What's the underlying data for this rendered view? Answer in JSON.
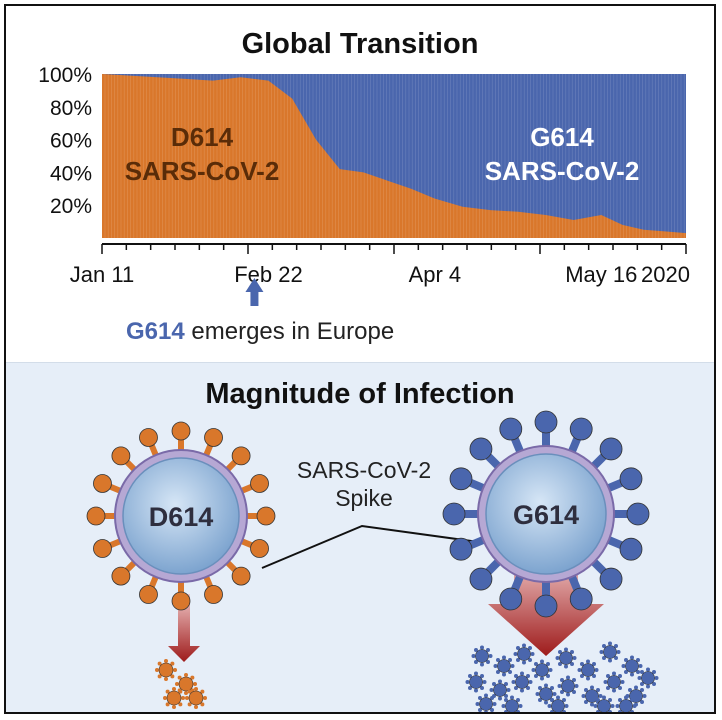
{
  "top_title": "Global Transition",
  "chart_data": {
    "type": "area",
    "stacked": true,
    "normalized": true,
    "x_ticks": [
      "Jan 11",
      "Feb 22",
      "Apr 4",
      "May 16",
      "2020"
    ],
    "y_ticks": [
      "100%",
      "80%",
      "60%",
      "40%",
      "20%"
    ],
    "ylim": [
      0,
      100
    ],
    "series": [
      {
        "name": "D614 SARS-CoV-2",
        "color": "#d9772b",
        "x": [
          "Jan 11",
          "Jan 18",
          "Jan 25",
          "Feb 1",
          "Feb 8",
          "Feb 15",
          "Feb 22",
          "Feb 25",
          "Feb 29",
          "Mar 7",
          "Mar 14",
          "Mar 21",
          "Mar 28",
          "Apr 4",
          "Apr 11",
          "Apr 18",
          "Apr 25",
          "May 2",
          "May 9",
          "May 16",
          "May 20",
          "May 27",
          "Jun 3",
          "Jun 10"
        ],
        "values": [
          100,
          99,
          98,
          97,
          96,
          98,
          96,
          85,
          60,
          42,
          40,
          35,
          30,
          24,
          19,
          17,
          16,
          14,
          11,
          14,
          8,
          5,
          4,
          3
        ]
      },
      {
        "name": "G614 SARS-CoV-2",
        "color": "#4a66ad",
        "x": [
          "Jan 11",
          "Jan 18",
          "Jan 25",
          "Feb 1",
          "Feb 8",
          "Feb 15",
          "Feb 22",
          "Feb 25",
          "Feb 29",
          "Mar 7",
          "Mar 14",
          "Mar 21",
          "Mar 28",
          "Apr 4",
          "Apr 11",
          "Apr 18",
          "Apr 25",
          "May 2",
          "May 9",
          "May 16",
          "May 20",
          "May 27",
          "Jun 3",
          "Jun 10"
        ],
        "values": [
          0,
          1,
          2,
          3,
          4,
          2,
          4,
          15,
          40,
          58,
          60,
          65,
          70,
          76,
          81,
          83,
          84,
          86,
          89,
          86,
          92,
          95,
          96,
          97
        ]
      }
    ],
    "labels": {
      "d614_line1": "D614",
      "d614_line2": "SARS-CoV-2",
      "g614_line1": "G614",
      "g614_line2": "SARS-CoV-2"
    }
  },
  "caption": {
    "highlight": "G614",
    "rest": " emerges in Europe"
  },
  "lower_title": "Magnitude of Infection",
  "spike_label": {
    "line1": "SARS-CoV-2",
    "line2": "Spike"
  },
  "viruses": {
    "d614": {
      "label": "D614",
      "color": "#d9772b"
    },
    "g614": {
      "label": "G614",
      "color": "#4a66ad"
    }
  },
  "colors": {
    "d614": "#d9772b",
    "g614": "#4a66ad",
    "arrow_up": "#4a66ad",
    "arrow_down": "#9e1b1b",
    "panel_bg": "#e6eef8"
  }
}
